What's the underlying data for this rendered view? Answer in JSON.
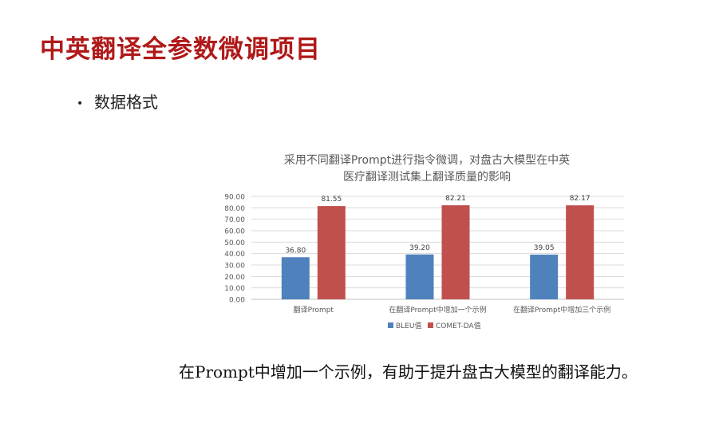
{
  "slide": {
    "title": "中英翻译全参数微调项目",
    "bullet": "数据格式",
    "caption": "在Prompt中增加一个示例，有助于提升盘古大模型的翻译能力。"
  },
  "chart_data": {
    "type": "bar",
    "title_lines": [
      "采用不同翻译Prompt进行指令微调，对盘古大模型在中英",
      "医疗翻译测试集上翻译质量的影响"
    ],
    "categories": [
      "翻译Prompt",
      "在翻译Prompt中增加一个示例",
      "在翻译Prompt中增加三个示例"
    ],
    "series": [
      {
        "name": "BLEU值",
        "color": "#4f81bd",
        "values": [
          36.8,
          39.2,
          39.05
        ]
      },
      {
        "name": "COMET-DA值",
        "color": "#c0504d",
        "values": [
          81.55,
          82.21,
          82.17
        ]
      }
    ],
    "ylim": [
      0,
      90
    ],
    "yticks": [
      "0.00",
      "10.00",
      "20.00",
      "30.00",
      "40.00",
      "50.00",
      "60.00",
      "70.00",
      "80.00",
      "90.00"
    ],
    "data_labels": [
      [
        "36.80",
        "39.20",
        "39.05"
      ],
      [
        "81.55",
        "82.21",
        "82.17"
      ]
    ],
    "grid": true,
    "legend_position": "bottom"
  }
}
